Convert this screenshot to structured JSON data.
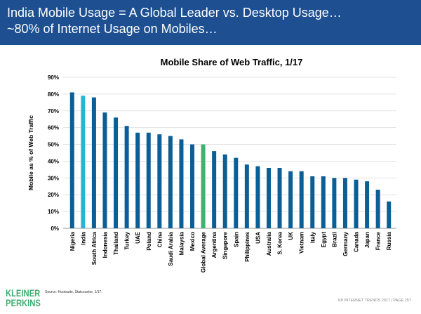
{
  "header": {
    "line1": "India Mobile Usage = A Global Leader vs. Desktop Usage…",
    "line2": "~80% of Internet Usage on Mobiles…"
  },
  "chart_data": {
    "type": "bar",
    "title": "Mobile Share of Web Traffic, 1/17",
    "ylabel": "Mobile as % of Web Traffic",
    "xlabel": "",
    "ylim": [
      0,
      90
    ],
    "yticks": [
      "0%",
      "10%",
      "20%",
      "30%",
      "40%",
      "50%",
      "60%",
      "70%",
      "80%",
      "90%"
    ],
    "grid": true,
    "categories": [
      "Nigeria",
      "India",
      "South Africa",
      "Indonesia",
      "Thailand",
      "Turkey",
      "UAE",
      "Poland",
      "China",
      "Saudi Arabia",
      "Malaysia",
      "Mexico",
      "Global Average",
      "Argentina",
      "Singapore",
      "Spain",
      "Philippines",
      "USA",
      "Australia",
      "S. Korea",
      "UK",
      "Vietnam",
      "Italy",
      "Egypt",
      "Brazil",
      "Germany",
      "Canada",
      "Japan",
      "France",
      "Russia"
    ],
    "values": [
      81,
      79,
      78,
      69,
      66,
      61,
      57,
      57,
      56,
      55,
      53,
      50,
      50,
      46,
      44,
      42,
      38,
      37,
      36,
      36,
      34,
      34,
      31,
      31,
      30,
      30,
      29,
      28,
      23,
      16
    ],
    "colors": {
      "default": "#0b5f95",
      "India": "#26b5d8",
      "Global Average": "#3cb371"
    }
  },
  "footer": {
    "logo": "KLEINER PERKINS",
    "source": "Source: Hootsuite, Statcounter, 1/17.",
    "page": "KP INTERNET TRENDS 2017  |  PAGE 257"
  }
}
